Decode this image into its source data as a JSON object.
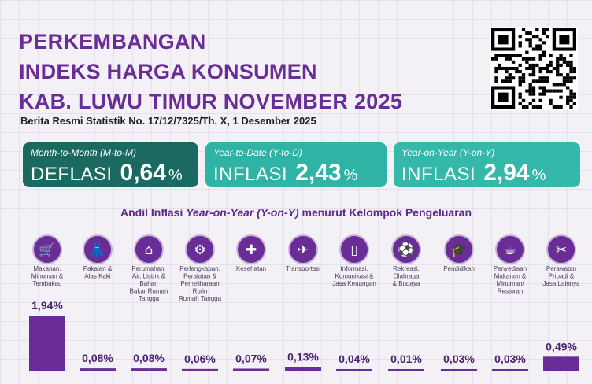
{
  "header": {
    "title_lines": [
      "PERKEMBANGAN",
      "INDEKS HARGA KONSUMEN",
      "KAB. LUWU TIMUR NOVEMBER 2025"
    ],
    "subtitle": "Berita Resmi Statistik No. 17/12/7325/Th. X, 1 Desember 2025"
  },
  "cards": [
    {
      "period": "Month-to-Month (M-to-M)",
      "kind": "DEFLASI",
      "value": "0,64",
      "unit": "%",
      "color": "#1a6a61"
    },
    {
      "period": "Year-to-Date (Y-to-D)",
      "kind": "INFLASI",
      "value": "2,43",
      "unit": "%",
      "color": "#2fb3a5"
    },
    {
      "period": "Year-on-Year (Y-on-Y)",
      "kind": "INFLASI",
      "value": "2,94",
      "unit": "%",
      "color": "#34b8aa"
    }
  ],
  "chart_data": {
    "type": "bar",
    "title_prefix": "Andil Inflasi ",
    "title_italic": "Year-on-Year (Y-on-Y)",
    "title_suffix": " menurut Kelompok Pengeluaran",
    "categories": [
      {
        "label": [
          "Makanan,",
          "Minuman &",
          "Tembakau"
        ],
        "icon": "food-basket-icon",
        "glyph": "🛒"
      },
      {
        "label": [
          "Pakaian &",
          "Alas Kaki"
        ],
        "icon": "dress-icon",
        "glyph": "👗"
      },
      {
        "label": [
          "Perumahan,",
          "Air, Listrik &",
          "Bahan",
          "Bakar Rumah",
          "Tangga"
        ],
        "icon": "house-icon",
        "glyph": "⌂"
      },
      {
        "label": [
          "Perlengkapan,",
          "Peralatan &",
          "Pemeliharaan",
          "Rutin",
          "Rumah Tangga"
        ],
        "icon": "appliance-icon",
        "glyph": "⚙"
      },
      {
        "label": [
          "Kesehatan"
        ],
        "icon": "health-kit-icon",
        "glyph": "✚"
      },
      {
        "label": [
          "Transportasi"
        ],
        "icon": "airplane-icon",
        "glyph": "✈"
      },
      {
        "label": [
          "Informasi,",
          "Komunikasi &",
          "Jasa Keuangan"
        ],
        "icon": "smartphone-icon",
        "glyph": "▯"
      },
      {
        "label": [
          "Rekreasi,",
          "Olahraga",
          "& Budaya"
        ],
        "icon": "soccer-icon",
        "glyph": "⚽"
      },
      {
        "label": [
          "Pendidikan"
        ],
        "icon": "graduation-cap-icon",
        "glyph": "🎓"
      },
      {
        "label": [
          "Penyediaan",
          "Makanan &",
          "Minuman/",
          "Restoran"
        ],
        "icon": "food-service-icon",
        "glyph": "☕"
      },
      {
        "label": [
          "Perawatan",
          "Pribadi &",
          "Jasa Lainnya"
        ],
        "icon": "tools-icon",
        "glyph": "✂"
      }
    ],
    "values": [
      1.94,
      0.08,
      0.08,
      0.06,
      0.07,
      0.13,
      0.04,
      0.01,
      0.03,
      0.03,
      0.49
    ],
    "value_labels": [
      "1,94%",
      "0,08%",
      "0,08%",
      "0,06%",
      "0,07%",
      "0,13%",
      "0,04%",
      "0,01%",
      "0,03%",
      "0,03%",
      "0,49%"
    ],
    "bar_color": "#6a2c97"
  }
}
